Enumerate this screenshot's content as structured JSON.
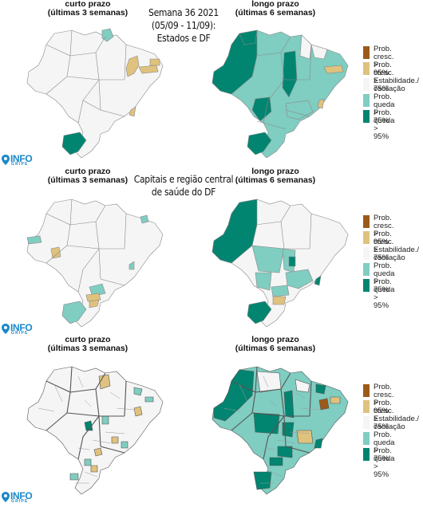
{
  "panel_titles": [
    {
      "line1": "curto prazo",
      "line2": "(últimas 3 semanas)"
    },
    {
      "line1": "longo prazo",
      "line2": "(últimas 6 semanas)"
    },
    {
      "line1": "curto prazo",
      "line2": "(últimas 3 semanas)"
    },
    {
      "line1": "longo prazo",
      "line2": "(últimas 6 semanas)"
    },
    {
      "line1": "curto prazo",
      "line2": "(últimas 3 semanas)"
    },
    {
      "line1": "longo prazo",
      "line2": "(últimas 6 semanas)"
    }
  ],
  "headline_top": {
    "line1": "Semana 36 2021",
    "line2": "(05/09 - 11/09):",
    "line3": "Estados e DF"
  },
  "headline_mid": {
    "line1": "Capitais e região central",
    "line2": "de saúde do DF"
  },
  "legend": [
    {
      "line1": "Prob. cresc.",
      "line2": "> 95%",
      "color": "#9c5a1a"
    },
    {
      "line1": "Prob. cresc.",
      "line2": "> 75%",
      "color": "#dfc27d"
    },
    {
      "line1": "Estabilidade./",
      "line2": "oscilação",
      "color": "#f5f5f5"
    },
    {
      "line1": "Prob. queda",
      "line2": "> 75%",
      "color": "#80cdc1"
    },
    {
      "line1": "Prob. queda",
      "line2": "> 95%",
      "color": "#018571"
    }
  ],
  "logo": {
    "main": "INFO",
    "sub": "GRIPE",
    "color": "#1a88c9"
  },
  "colors": {
    "growth95": "#9c5a1a",
    "growth75": "#dfc27d",
    "stable": "#f5f5f5",
    "fall75": "#80cdc1",
    "fall95": "#018571"
  }
}
